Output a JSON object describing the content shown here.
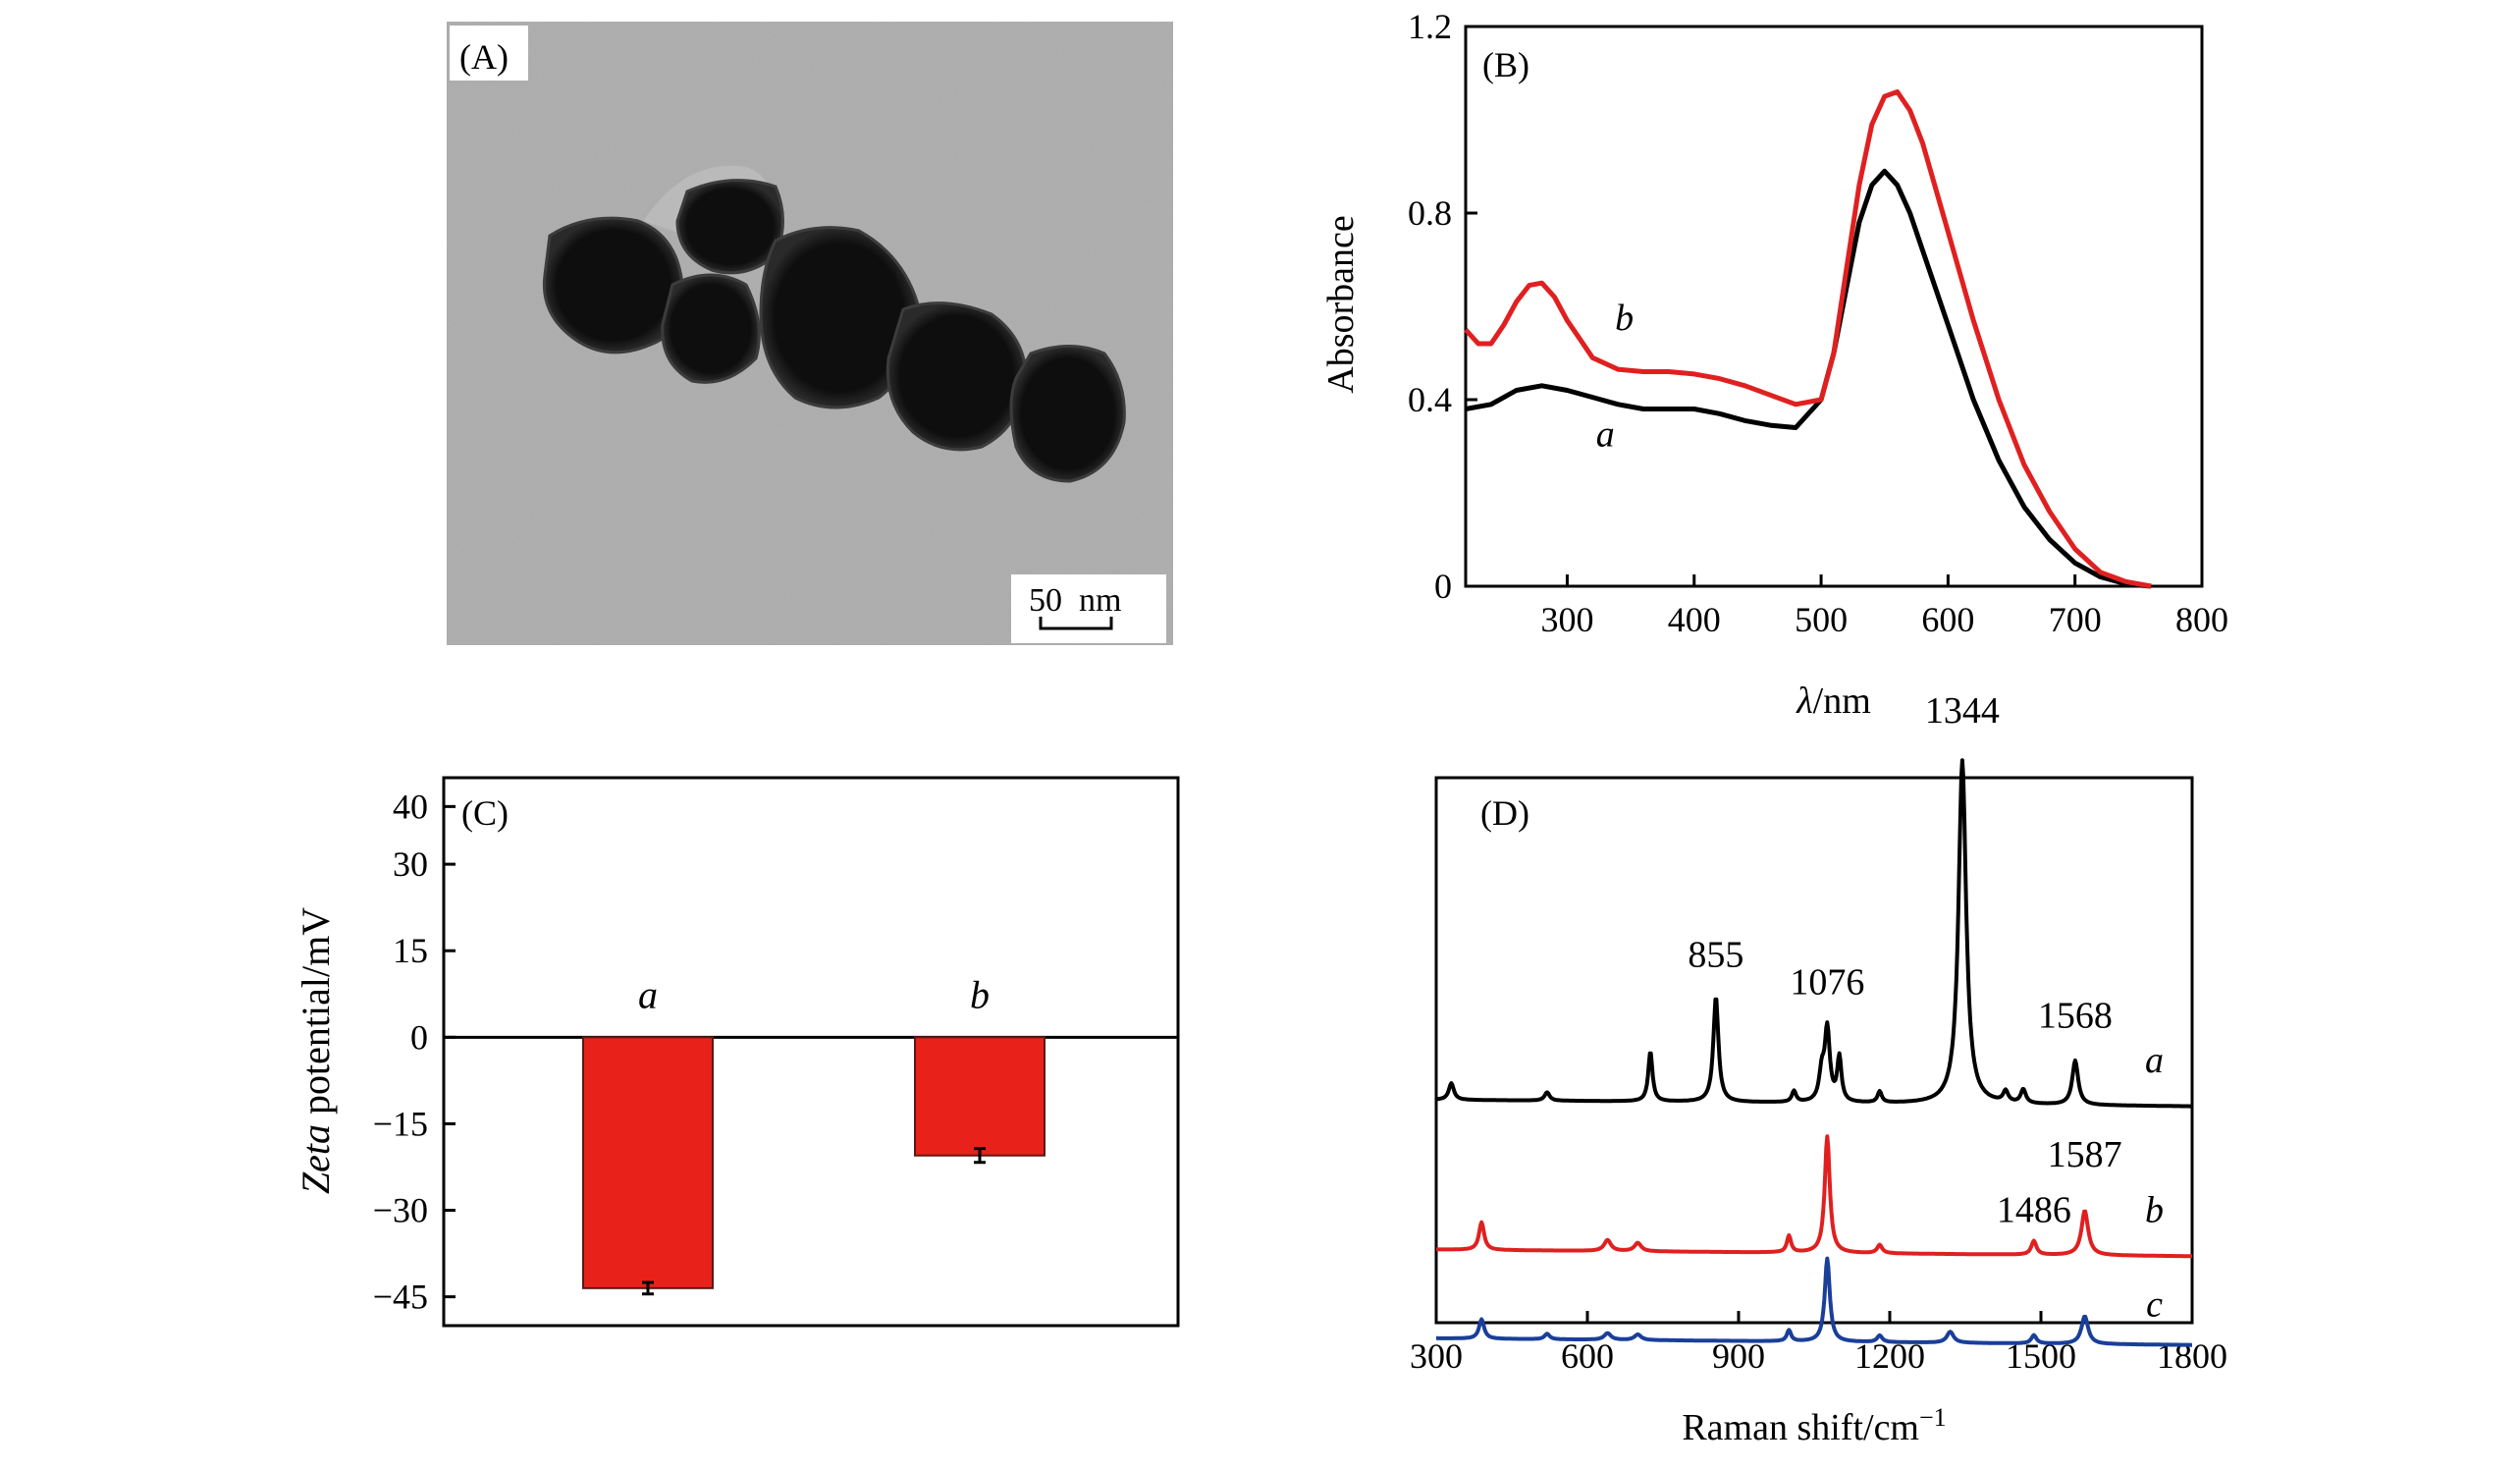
{
  "panel_a": {
    "label": "(A)",
    "scale_bar_label": "50  nm"
  },
  "chart_data": [
    {
      "panel": "B",
      "type": "line",
      "label": "(B)",
      "xlabel_italic": "λ",
      "xlabel_rest": "/nm",
      "ylabel": "Absorbance",
      "xlim": [
        220,
        800
      ],
      "ylim": [
        0,
        1.2
      ],
      "xticks": [
        300,
        400,
        500,
        600,
        700,
        800
      ],
      "yticks": [
        0,
        0.4,
        0.8,
        1.2
      ],
      "ytick_labels": [
        "0",
        "0.4",
        "0.8",
        "1.2"
      ],
      "series": [
        {
          "name": "a",
          "color": "#000000",
          "x": [
            220,
            240,
            260,
            280,
            300,
            320,
            340,
            360,
            380,
            400,
            420,
            440,
            460,
            480,
            500,
            510,
            520,
            530,
            540,
            550,
            560,
            570,
            580,
            600,
            620,
            640,
            660,
            680,
            700,
            720,
            740,
            760
          ],
          "y": [
            0.38,
            0.39,
            0.42,
            0.43,
            0.42,
            0.405,
            0.39,
            0.38,
            0.38,
            0.38,
            0.37,
            0.355,
            0.345,
            0.34,
            0.4,
            0.5,
            0.64,
            0.78,
            0.86,
            0.89,
            0.86,
            0.8,
            0.72,
            0.56,
            0.4,
            0.27,
            0.17,
            0.1,
            0.05,
            0.02,
            0.005,
            0.0
          ]
        },
        {
          "name": "b",
          "color": "#e02020",
          "x": [
            220,
            230,
            240,
            250,
            260,
            270,
            280,
            290,
            300,
            310,
            320,
            340,
            360,
            380,
            400,
            420,
            440,
            460,
            480,
            500,
            510,
            520,
            530,
            540,
            550,
            560,
            570,
            580,
            600,
            620,
            640,
            660,
            680,
            700,
            720,
            740,
            760
          ],
          "y": [
            0.55,
            0.52,
            0.52,
            0.56,
            0.61,
            0.645,
            0.65,
            0.62,
            0.57,
            0.53,
            0.49,
            0.465,
            0.46,
            0.46,
            0.455,
            0.445,
            0.43,
            0.41,
            0.39,
            0.4,
            0.5,
            0.68,
            0.86,
            0.99,
            1.05,
            1.06,
            1.02,
            0.95,
            0.76,
            0.57,
            0.4,
            0.26,
            0.16,
            0.08,
            0.03,
            0.01,
            0.0
          ]
        }
      ],
      "curve_labels": [
        {
          "text": "a",
          "x": 330,
          "y": 0.3
        },
        {
          "text": "b",
          "x": 345,
          "y": 0.55
        }
      ]
    },
    {
      "panel": "C",
      "type": "bar",
      "label": "(C)",
      "ylabel_italic": "Zeta",
      "ylabel_rest": " potential/mV",
      "ylim": [
        -50,
        45
      ],
      "yticks": [
        -45,
        -30,
        -15,
        0,
        15,
        30,
        40
      ],
      "ytick_labels": [
        "−45",
        "−30",
        "−15",
        "0",
        "15",
        "30",
        "40"
      ],
      "categories": [
        "a",
        "b"
      ],
      "values": [
        -43.5,
        -20.5
      ],
      "errors": [
        1.0,
        1.2
      ],
      "bar_color": "#e8221a"
    },
    {
      "panel": "D",
      "type": "line",
      "label": "(D)",
      "xlabel": "Raman shift/cm",
      "xlabel_sup": "−1",
      "xlim": [
        300,
        1800
      ],
      "xticks": [
        300,
        600,
        900,
        1200,
        1500,
        1800
      ],
      "series": [
        {
          "name": "a",
          "color": "#000000",
          "offset": 0.0,
          "peaks": [
            [
              330,
              0.03,
              6
            ],
            [
              520,
              0.015,
              6
            ],
            [
              725,
              0.09,
              5
            ],
            [
              855,
              0.19,
              6
            ],
            [
              1010,
              0.02,
              5
            ],
            [
              1065,
              0.05,
              6
            ],
            [
              1076,
              0.13,
              6
            ],
            [
              1100,
              0.08,
              5
            ],
            [
              1180,
              0.02,
              5
            ],
            [
              1344,
              0.62,
              9
            ],
            [
              1430,
              0.02,
              6
            ],
            [
              1465,
              0.025,
              6
            ],
            [
              1568,
              0.08,
              7
            ]
          ]
        },
        {
          "name": "b",
          "color": "#e02020",
          "offset": -0.27,
          "peaks": [
            [
              390,
              0.05,
              6
            ],
            [
              640,
              0.02,
              8
            ],
            [
              700,
              0.015,
              8
            ],
            [
              1000,
              0.03,
              5
            ],
            [
              1076,
              0.21,
              6
            ],
            [
              1180,
              0.015,
              6
            ],
            [
              1486,
              0.025,
              6
            ],
            [
              1587,
              0.08,
              8
            ]
          ]
        },
        {
          "name": "c",
          "color": "#1a3f9a",
          "offset": -0.43,
          "peaks": [
            [
              390,
              0.035,
              6
            ],
            [
              520,
              0.01,
              6
            ],
            [
              640,
              0.012,
              8
            ],
            [
              700,
              0.01,
              8
            ],
            [
              1000,
              0.02,
              5
            ],
            [
              1076,
              0.15,
              6
            ],
            [
              1180,
              0.012,
              6
            ],
            [
              1320,
              0.02,
              8
            ],
            [
              1486,
              0.015,
              6
            ],
            [
              1587,
              0.05,
              8
            ]
          ]
        }
      ],
      "annotations": [
        {
          "text": "855",
          "x": 855,
          "y": 0.24
        },
        {
          "text": "1076",
          "x": 1076,
          "y": 0.19
        },
        {
          "text": "1344",
          "x": 1344,
          "y": 0.68
        },
        {
          "text": "1568",
          "x": 1568,
          "y": 0.13
        },
        {
          "text": "1486",
          "x": 1486,
          "y": -0.22
        },
        {
          "text": "1587",
          "x": 1587,
          "y": -0.12
        }
      ],
      "curve_labels": [
        {
          "text": "a",
          "x": 1725,
          "y": 0.05
        },
        {
          "text": "b",
          "x": 1725,
          "y": -0.22
        },
        {
          "text": "c",
          "x": 1725,
          "y": -0.39
        }
      ]
    }
  ]
}
